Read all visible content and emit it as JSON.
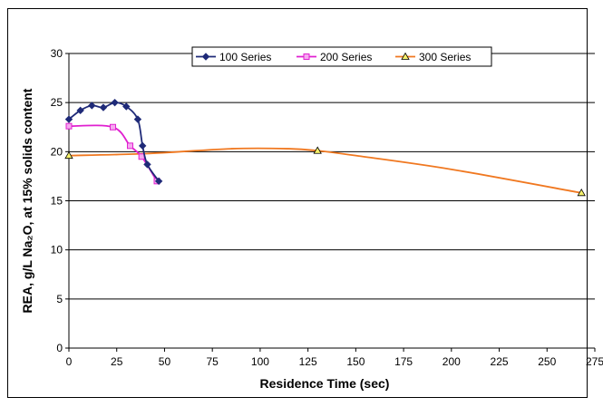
{
  "chart_data": {
    "type": "scatter",
    "xlabel": "Residence Time (sec)",
    "ylabel": "REA, g/L Na₂O, at 15% solids content",
    "xlim": [
      0,
      275
    ],
    "ylim": [
      0,
      30
    ],
    "xticks": [
      "0",
      "25",
      "50",
      "75",
      "100",
      "125",
      "150",
      "175",
      "200",
      "225",
      "250",
      "275"
    ],
    "yticks": [
      "0",
      "5",
      "10",
      "15",
      "20",
      "25",
      "30"
    ],
    "grid": "horizontal",
    "legend_position": "top-right",
    "series": [
      {
        "name": "100 Series",
        "color": "#1f2a78",
        "marker": "diamond",
        "smooth": true,
        "points": [
          [
            0,
            23.3
          ],
          [
            6,
            24.2
          ],
          [
            12,
            24.7
          ],
          [
            18,
            24.5
          ],
          [
            24,
            25.0
          ],
          [
            30,
            24.6
          ],
          [
            36,
            23.3
          ],
          [
            38.5,
            20.6
          ],
          [
            41,
            18.7
          ],
          [
            47,
            17.0
          ]
        ]
      },
      {
        "name": "200 Series",
        "color": "#e020d0",
        "marker": "square",
        "smooth": true,
        "points": [
          [
            0,
            22.6
          ],
          [
            23,
            22.5
          ],
          [
            32,
            20.6
          ],
          [
            38,
            19.5
          ],
          [
            46,
            17.0
          ]
        ]
      },
      {
        "name": "300 Series",
        "color": "#f07820",
        "marker": "triangle",
        "smooth": true,
        "points": [
          [
            0,
            19.6
          ],
          [
            130,
            20.1
          ],
          [
            268,
            15.8
          ]
        ],
        "control_hint": [
          [
            0,
            19.6
          ],
          [
            40,
            19.8
          ],
          [
            85,
            20.3
          ],
          [
            115,
            20.3
          ],
          [
            130,
            20.1
          ],
          [
            150,
            19.6
          ],
          [
            200,
            18.2
          ],
          [
            268,
            15.8
          ]
        ]
      }
    ]
  }
}
